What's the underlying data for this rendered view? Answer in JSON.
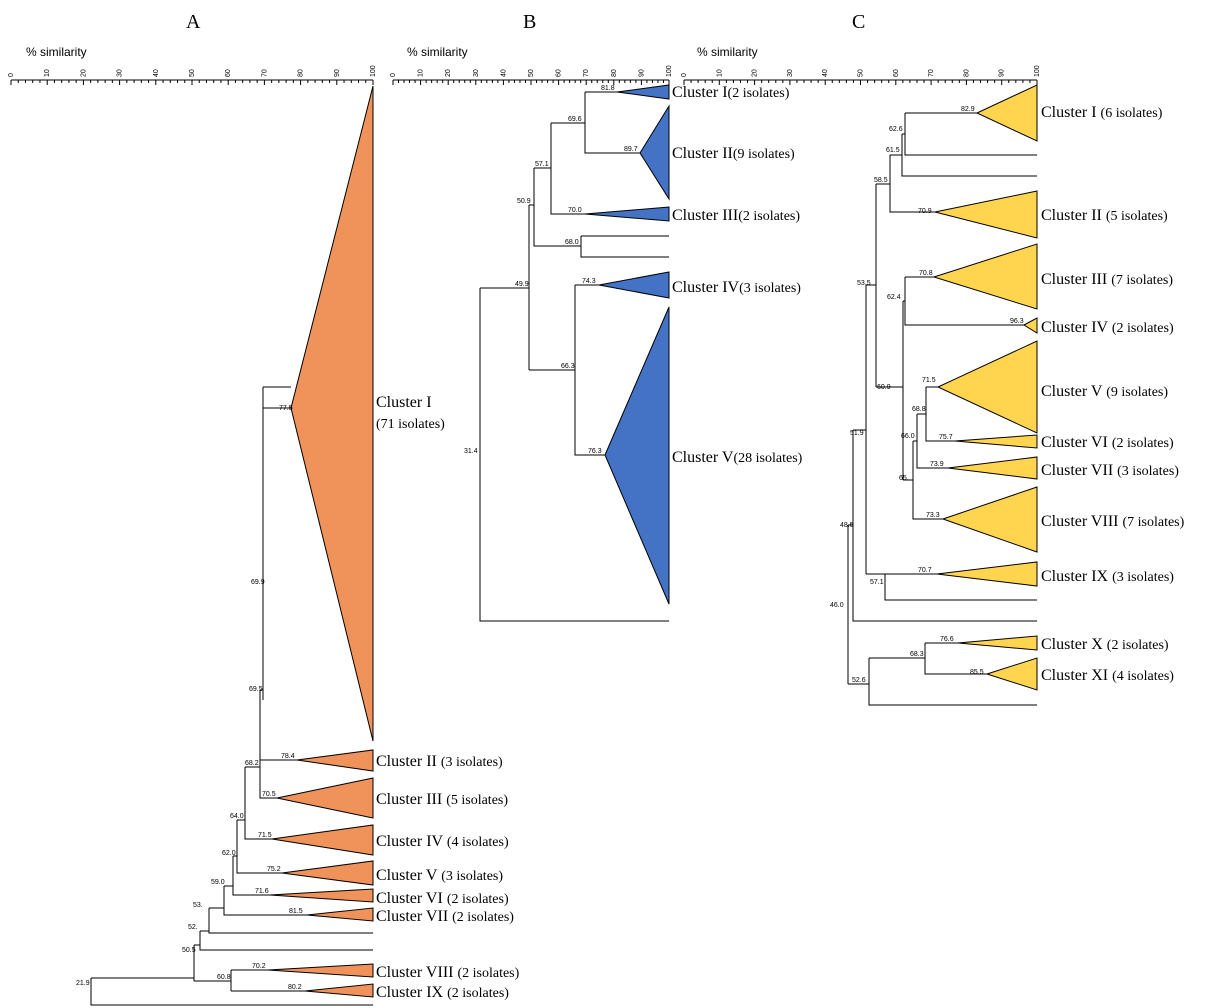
{
  "panels": [
    {
      "id": "A",
      "label": "A",
      "scale_title": "% similarity",
      "scale_ticks": [
        "0",
        "10",
        "20",
        "30",
        "40",
        "50",
        "60",
        "70",
        "80",
        "90",
        "100"
      ],
      "fill": "#F0935A",
      "nodes": [
        "77.5",
        "69.9",
        "69.5",
        "78.4",
        "68.2",
        "70.5",
        "64.0",
        "71.5",
        "62.0",
        "75.2",
        "59.0",
        "71.6",
        "53.",
        "81.5",
        "52.",
        "50.5",
        "60.8",
        "70.2",
        "80.2",
        "21.9"
      ],
      "clusters": [
        {
          "name": "Cluster  I",
          "count": "(71 isolates)"
        },
        {
          "name": "Cluster  II",
          "count": "(3 isolates)"
        },
        {
          "name": "Cluster  III",
          "count": "(5 isolates)"
        },
        {
          "name": "Cluster  IV",
          "count": "(4 isolates)"
        },
        {
          "name": "Cluster  V",
          "count": "(3 isolates)"
        },
        {
          "name": "Cluster  VI",
          "count": "(2 isolates)"
        },
        {
          "name": "Cluster  VII",
          "count": "(2 isolates)"
        },
        {
          "name": "Cluster  VIII",
          "count": "(2 isolates)"
        },
        {
          "name": "Cluster  IX",
          "count": "(2 isolates)"
        }
      ]
    },
    {
      "id": "B",
      "label": "B",
      "scale_title": "% similarity",
      "scale_ticks": [
        "0",
        "10",
        "20",
        "30",
        "40",
        "50",
        "60",
        "70",
        "80",
        "90",
        "100"
      ],
      "fill": "#4472C4",
      "nodes": [
        "81.8",
        "69.6",
        "89.7",
        "57.1",
        "70.0",
        "50.9",
        "68.0",
        "49.9",
        "74.3",
        "66.3",
        "76.3",
        "31.4"
      ],
      "clusters": [
        {
          "name": "Cluster  I",
          "count": "(2 isolates)"
        },
        {
          "name": "Cluster  II",
          "count": "(9 isolates)"
        },
        {
          "name": "Cluster  III",
          "count": "(2 isolates)"
        },
        {
          "name": "Cluster  IV",
          "count": "(3 isolates)"
        },
        {
          "name": "Cluster  V",
          "count": "(28 isolates)"
        }
      ]
    },
    {
      "id": "C",
      "label": "C",
      "scale_title": "% similarity",
      "scale_ticks": [
        "0",
        "10",
        "20",
        "30",
        "40",
        "50",
        "60",
        "70",
        "80",
        "90",
        "100"
      ],
      "fill": "#FFD54F",
      "nodes": [
        "82.9",
        "62.6",
        "61.5",
        "58.5",
        "70.9",
        "53.5",
        "70.8",
        "62.4",
        "96.3",
        "71.5",
        "60.9",
        "68.8",
        "66.0",
        "75.7",
        "73.9",
        "65.",
        "73.3",
        "51.9",
        "48.5",
        "70.7",
        "57.1",
        "46.0",
        "76.6",
        "68.3",
        "85.5",
        "52.6"
      ],
      "clusters": [
        {
          "name": "Cluster  I",
          "count": "(6 isolates)"
        },
        {
          "name": "Cluster  II",
          "count": "(5 isolates)"
        },
        {
          "name": "Cluster  III",
          "count": "(7 isolates)"
        },
        {
          "name": "Cluster  IV",
          "count": "(2 isolates)"
        },
        {
          "name": "Cluster  V",
          "count": "(9 isolates)"
        },
        {
          "name": "Cluster  VI",
          "count": "(2 isolates)"
        },
        {
          "name": "Cluster  VII",
          "count": "(3 isolates)"
        },
        {
          "name": "Cluster  VIII",
          "count": "(7 isolates)"
        },
        {
          "name": "Cluster  IX",
          "count": "(3 isolates)"
        },
        {
          "name": "Cluster  X",
          "count": "(2 isolates)"
        },
        {
          "name": "Cluster  XI",
          "count": "(4 isolates)"
        }
      ]
    }
  ]
}
